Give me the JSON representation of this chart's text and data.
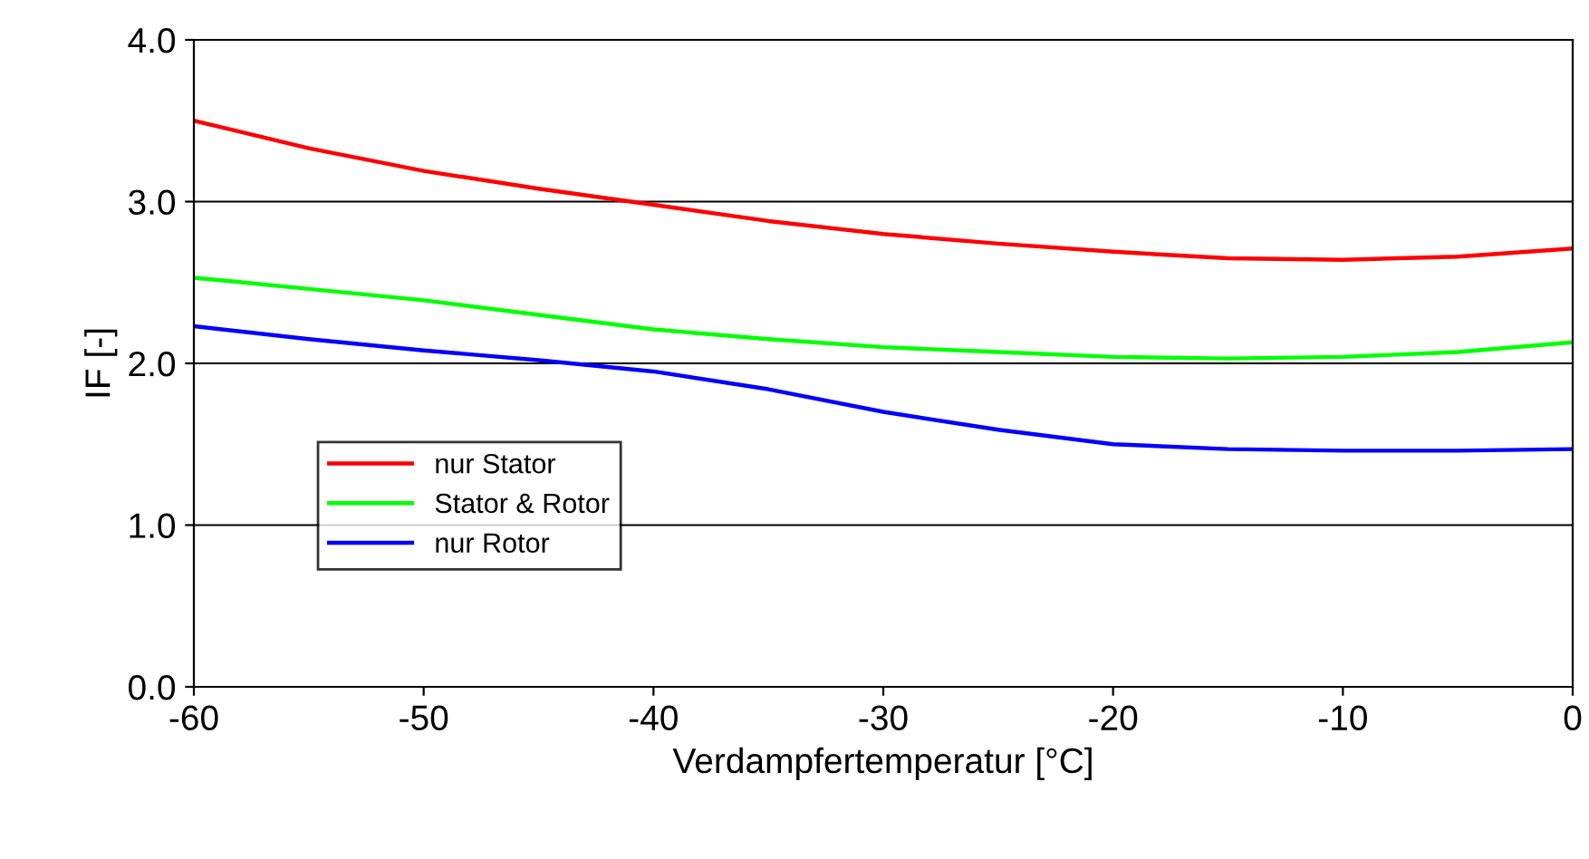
{
  "chart_data": {
    "type": "line",
    "xlabel": "Verdampfertemperatur [°C]",
    "ylabel": "IF [-]",
    "x": [
      -60,
      -55,
      -50,
      -45,
      -40,
      -35,
      -30,
      -25,
      -20,
      -15,
      -10,
      -5,
      0
    ],
    "series": [
      {
        "name": "nur Stator",
        "color": "#ff0000",
        "values": [
          3.5,
          3.33,
          3.19,
          3.08,
          2.98,
          2.88,
          2.8,
          2.74,
          2.69,
          2.65,
          2.64,
          2.66,
          2.71
        ]
      },
      {
        "name": "Stator & Rotor",
        "color": "#00ff00",
        "values": [
          2.53,
          2.46,
          2.39,
          2.3,
          2.21,
          2.15,
          2.1,
          2.07,
          2.04,
          2.03,
          2.04,
          2.07,
          2.13
        ]
      },
      {
        "name": "nur Rotor",
        "color": "#0000ff",
        "values": [
          2.23,
          2.15,
          2.08,
          2.02,
          1.95,
          1.84,
          1.7,
          1.59,
          1.5,
          1.47,
          1.46,
          1.46,
          1.47
        ]
      }
    ],
    "xlim": [
      -60,
      0
    ],
    "xticks": [
      -60,
      -50,
      -40,
      -30,
      -20,
      -10,
      0
    ],
    "ylim": [
      0,
      4
    ],
    "yticks": [
      {
        "value": 0,
        "label": "0.0"
      },
      {
        "value": 1,
        "label": "1.0"
      },
      {
        "value": 2,
        "label": "2.0"
      },
      {
        "value": 3,
        "label": "3.0"
      },
      {
        "value": 4,
        "label": "4.0"
      }
    ],
    "grid": "y",
    "legend": "left",
    "marker": "none",
    "line_style": "solid"
  }
}
